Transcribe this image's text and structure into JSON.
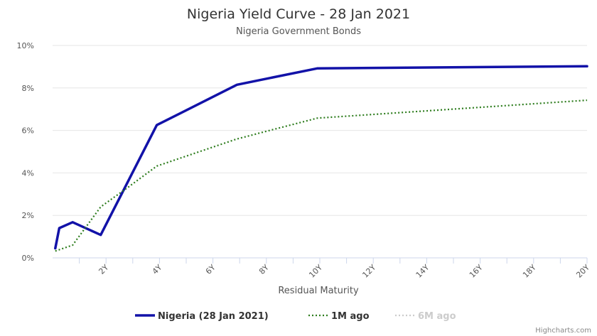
{
  "chart_data": {
    "type": "line",
    "title": "Nigeria Yield Curve - 28 Jan 2021",
    "subtitle": "Nigeria Government Bonds",
    "xlabel": "Residual Maturity",
    "ylabel": "",
    "xlim": [
      0,
      20
    ],
    "ylim": [
      0,
      10
    ],
    "x_ticks": [
      "2Y",
      "4Y",
      "6Y",
      "8Y",
      "10Y",
      "12Y",
      "14Y",
      "16Y",
      "18Y",
      "20Y"
    ],
    "y_ticks": [
      "0%",
      "2%",
      "4%",
      "6%",
      "8%",
      "10%"
    ],
    "grid": true,
    "legend_position": "bottom",
    "credit": "Highcharts.com",
    "series": [
      {
        "name": "Nigeria (28 Jan 2021)",
        "style": "solid",
        "color": "#1212a8",
        "visible": true,
        "points": [
          [
            0.1,
            0.45
          ],
          [
            0.25,
            1.4
          ],
          [
            0.75,
            1.68
          ],
          [
            1.8,
            1.08
          ],
          [
            3.9,
            6.25
          ],
          [
            6.9,
            8.15
          ],
          [
            9.9,
            8.92
          ],
          [
            20,
            9.02
          ]
        ]
      },
      {
        "name": "1M ago",
        "style": "dotted",
        "color": "#2e7d1e",
        "visible": true,
        "points": [
          [
            0.1,
            0.32
          ],
          [
            0.75,
            0.6
          ],
          [
            1.8,
            2.4
          ],
          [
            2.8,
            3.3
          ],
          [
            3.9,
            4.32
          ],
          [
            6.9,
            5.6
          ],
          [
            9.9,
            6.58
          ],
          [
            20,
            7.42
          ]
        ]
      },
      {
        "name": "6M ago",
        "style": "dotted",
        "color": "#cccccc",
        "visible": false,
        "points": []
      }
    ]
  }
}
